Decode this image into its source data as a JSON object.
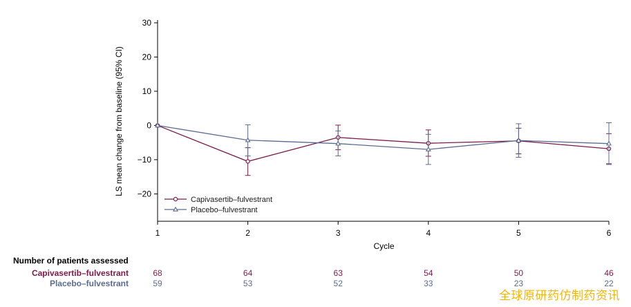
{
  "chart_data": {
    "type": "line",
    "xlabel": "Cycle",
    "ylabel": "LS mean change from baseline (95% CI)",
    "xlim": [
      1,
      6
    ],
    "ylim": [
      -28,
      30
    ],
    "x": [
      1,
      2,
      3,
      4,
      5,
      6
    ],
    "yticks": [
      30,
      20,
      10,
      0,
      -10,
      -20
    ],
    "ytick_labels": [
      "30",
      "20",
      "10",
      "0",
      "−10",
      "−20"
    ],
    "xtick_labels": [
      "1",
      "2",
      "3",
      "4",
      "5",
      "6"
    ],
    "legend_position": "bottom-left",
    "grid": false,
    "series": [
      {
        "name": "Capivasertib–fulvestrant",
        "color": "#7b1a4b",
        "marker": "circle",
        "values": [
          0,
          -10.5,
          -3.5,
          -5.2,
          -4.5,
          -6.8
        ],
        "ci_low": [
          0,
          -14.6,
          -7.1,
          -9.0,
          -8.3,
          -11.2
        ],
        "ci_high": [
          0,
          -6.5,
          0.1,
          -1.3,
          -0.8,
          -2.4
        ]
      },
      {
        "name": "Placebo–fulvestrant",
        "color": "#5b6b90",
        "marker": "triangle",
        "values": [
          0,
          -4.3,
          -5.3,
          -7.0,
          -4.4,
          -5.3
        ],
        "ci_low": [
          0,
          -8.9,
          -8.9,
          -11.4,
          -9.3,
          -11.4
        ],
        "ci_high": [
          0,
          0.2,
          -1.6,
          -2.6,
          0.5,
          0.8
        ]
      }
    ]
  },
  "risk_table": {
    "title": "Number of patients assessed",
    "rows": [
      {
        "label": "Capivasertib–fulvestrant",
        "color": "#7b1a4b",
        "values": [
          "68",
          "64",
          "63",
          "54",
          "50",
          "46"
        ]
      },
      {
        "label": "Placebo–fulvestrant",
        "color": "#5b6b90",
        "values": [
          "59",
          "53",
          "52",
          "33",
          "23",
          "22"
        ]
      }
    ]
  },
  "watermark": "全球原研药仿制药资讯"
}
